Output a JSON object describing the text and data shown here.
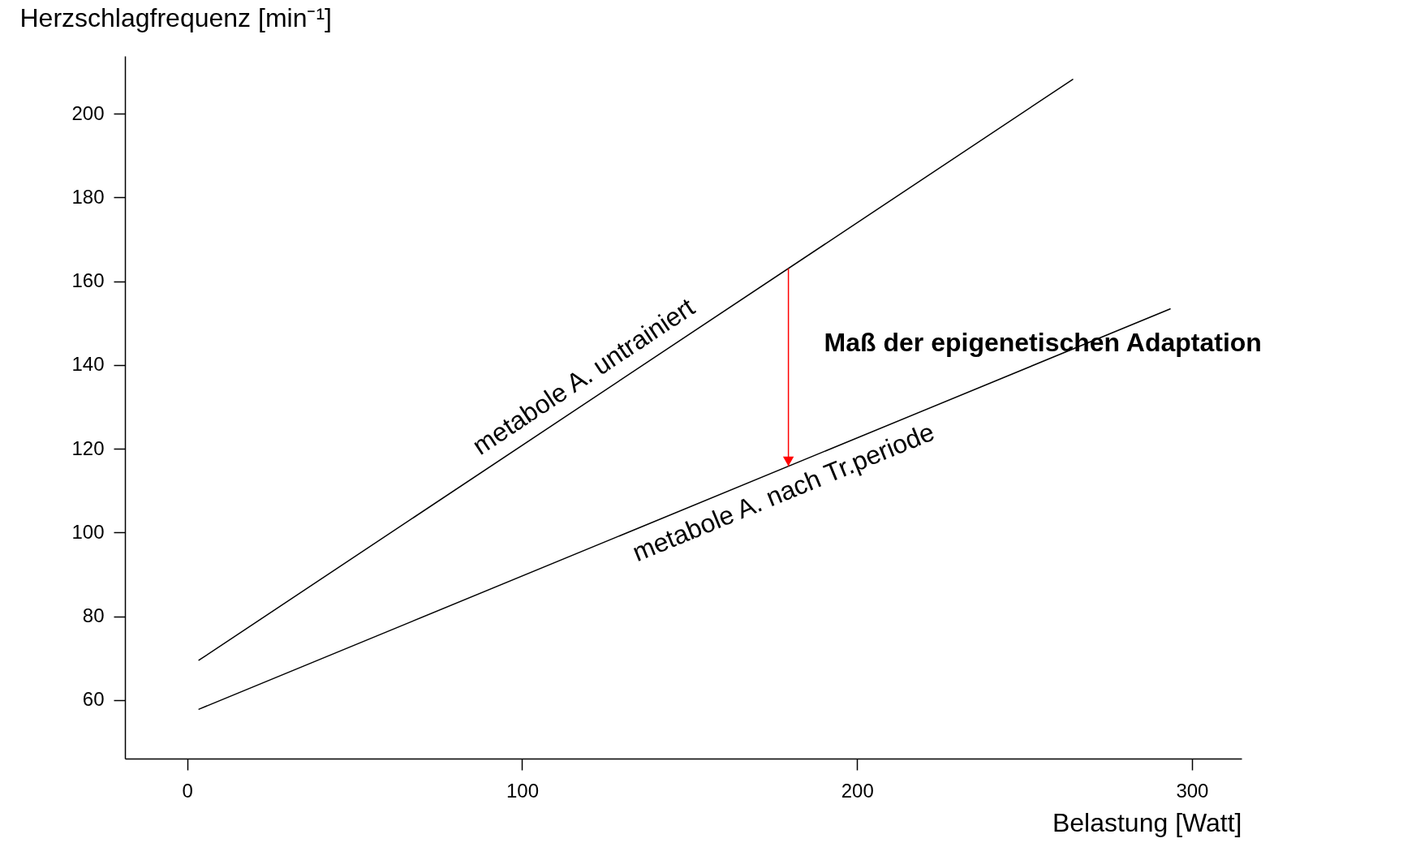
{
  "chart_data": {
    "type": "line",
    "xlabel": "Belastung [Watt]",
    "ylabel": "Herzschlagfrequenz [min⁻¹]",
    "series": [
      {
        "name": "metabole A. untrainiert",
        "color": "#000000",
        "x": [
          3.5,
          264.4
        ],
        "values": [
          69.5,
          208.2
        ]
      },
      {
        "name": "metabole A. nach Tr.periode",
        "color": "#000000",
        "x": [
          3.5,
          293.5
        ],
        "values": [
          57.8,
          153.4
        ]
      }
    ],
    "xlim": [
      -18.6,
      314.8
    ],
    "ylim": [
      46,
      213.8
    ],
    "xticks": [
      0,
      100,
      200,
      300
    ],
    "yticks": [
      60,
      80,
      100,
      120,
      140,
      160,
      180,
      200
    ],
    "grid": false,
    "marker": "none",
    "line_style": "solid",
    "annotations": [
      "Maß der epigenetischen Adaptation"
    ],
    "ref_lines": [
      {
        "axis": "x",
        "value": 179.5,
        "color": "#ff0000"
      }
    ]
  }
}
